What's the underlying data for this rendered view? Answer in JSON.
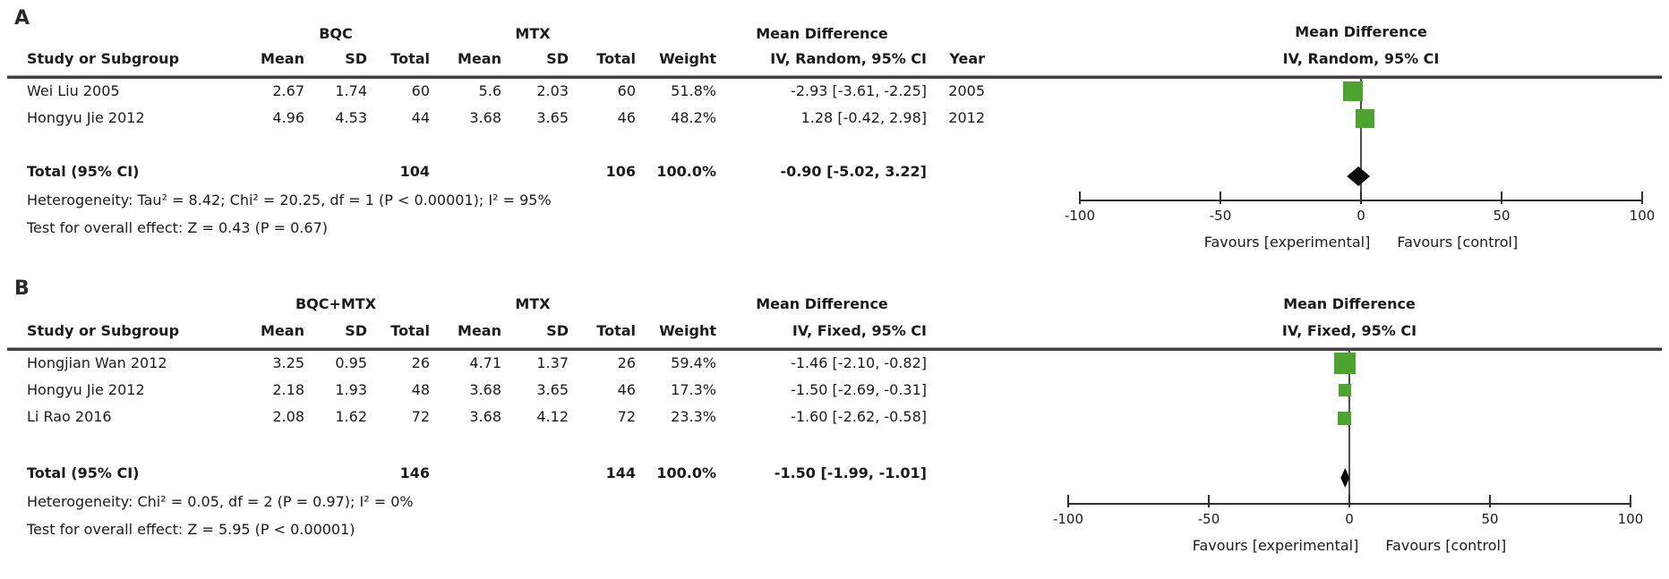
{
  "figure": {
    "name": "Forest plot meta-analysis, two panels"
  },
  "colors": {
    "marker_green": "#4DA32F",
    "diamond_black": "#0d0d0d",
    "line_dark": "#2e2e2e",
    "zero_line": "#4d4d4d"
  },
  "chart_data": [
    {
      "type": "scatter",
      "subtype": "forest-plot",
      "panel_label": "A",
      "group1_label": "BQC",
      "group2_label": "MTX",
      "effect_header_line1": "Mean Difference",
      "effect_header_line2": "IV, Random, 95% CI",
      "plot_title_line1": "Mean Difference",
      "plot_title_line2": "IV, Random, 95% CI",
      "headers": {
        "study": "Study or Subgroup",
        "mean": "Mean",
        "sd": "SD",
        "total": "Total",
        "weight": "Weight",
        "year": "Year"
      },
      "studies": [
        {
          "study": "Wei Liu 2005",
          "mean1": "2.67",
          "sd1": "1.74",
          "total1": "60",
          "mean2": "5.6",
          "sd2": "2.03",
          "total2": "60",
          "weight": "51.8%",
          "ci_text": "-2.93 [-3.61, -2.25]",
          "year": "2005",
          "md": -2.93,
          "ci_lo": -3.61,
          "ci_hi": -2.25,
          "weight_pct": 51.8
        },
        {
          "study": "Hongyu Jie 2012",
          "mean1": "4.96",
          "sd1": "4.53",
          "total1": "44",
          "mean2": "3.68",
          "sd2": "3.65",
          "total2": "46",
          "weight": "48.2%",
          "ci_text": "1.28 [-0.42, 2.98]",
          "year": "2012",
          "md": 1.28,
          "ci_lo": -0.42,
          "ci_hi": 2.98,
          "weight_pct": 48.2
        }
      ],
      "total": {
        "label": "Total (95% CI)",
        "total1": "104",
        "total2": "106",
        "weight": "100.0%",
        "ci_text": "-0.90 [-5.02, 3.22]",
        "md": -0.9,
        "ci_lo": -5.02,
        "ci_hi": 3.22
      },
      "heterogeneity": "Heterogeneity: Tau² = 8.42; Chi² = 20.25, df = 1 (P < 0.00001); I² = 95%",
      "overall_effect": "Test for overall effect: Z = 0.43 (P = 0.67)",
      "xlim": [
        -100,
        100
      ],
      "xticks": [
        -100,
        -50,
        0,
        50,
        100
      ],
      "favours_left": "Favours [experimental]",
      "favours_right": "Favours [control]"
    },
    {
      "type": "scatter",
      "subtype": "forest-plot",
      "panel_label": "B",
      "group1_label": "BQC+MTX",
      "group2_label": "MTX",
      "effect_header_line1": "Mean Difference",
      "effect_header_line2": "IV, Fixed, 95% CI",
      "plot_title_line1": "Mean Difference",
      "plot_title_line2": "IV, Fixed, 95% CI",
      "headers": {
        "study": "Study or Subgroup",
        "mean": "Mean",
        "sd": "SD",
        "total": "Total",
        "weight": "Weight"
      },
      "studies": [
        {
          "study": "Hongjian Wan 2012",
          "mean1": "3.25",
          "sd1": "0.95",
          "total1": "26",
          "mean2": "4.71",
          "sd2": "1.37",
          "total2": "26",
          "weight": "59.4%",
          "ci_text": "-1.46 [-2.10, -0.82]",
          "md": -1.46,
          "ci_lo": -2.1,
          "ci_hi": -0.82,
          "weight_pct": 59.4
        },
        {
          "study": "Hongyu Jie 2012",
          "mean1": "2.18",
          "sd1": "1.93",
          "total1": "48",
          "mean2": "3.68",
          "sd2": "3.65",
          "total2": "46",
          "weight": "17.3%",
          "ci_text": "-1.50 [-2.69, -0.31]",
          "md": -1.5,
          "ci_lo": -2.69,
          "ci_hi": -0.31,
          "weight_pct": 17.3
        },
        {
          "study": "Li Rao 2016",
          "mean1": "2.08",
          "sd1": "1.62",
          "total1": "72",
          "mean2": "3.68",
          "sd2": "4.12",
          "total2": "72",
          "weight": "23.3%",
          "ci_text": "-1.60 [-2.62, -0.58]",
          "md": -1.6,
          "ci_lo": -2.62,
          "ci_hi": -0.58,
          "weight_pct": 23.3
        }
      ],
      "total": {
        "label": "Total (95% CI)",
        "total1": "146",
        "total2": "144",
        "weight": "100.0%",
        "ci_text": "-1.50 [-1.99, -1.01]",
        "md": -1.5,
        "ci_lo": -1.99,
        "ci_hi": -1.01
      },
      "heterogeneity": "Heterogeneity: Chi² = 0.05, df = 2 (P = 0.97); I² = 0%",
      "overall_effect": "Test for overall effect: Z = 5.95 (P < 0.00001)",
      "xlim": [
        -100,
        100
      ],
      "xticks": [
        -100,
        -50,
        0,
        50,
        100
      ],
      "favours_left": "Favours [experimental]",
      "favours_right": "Favours [control]"
    }
  ]
}
